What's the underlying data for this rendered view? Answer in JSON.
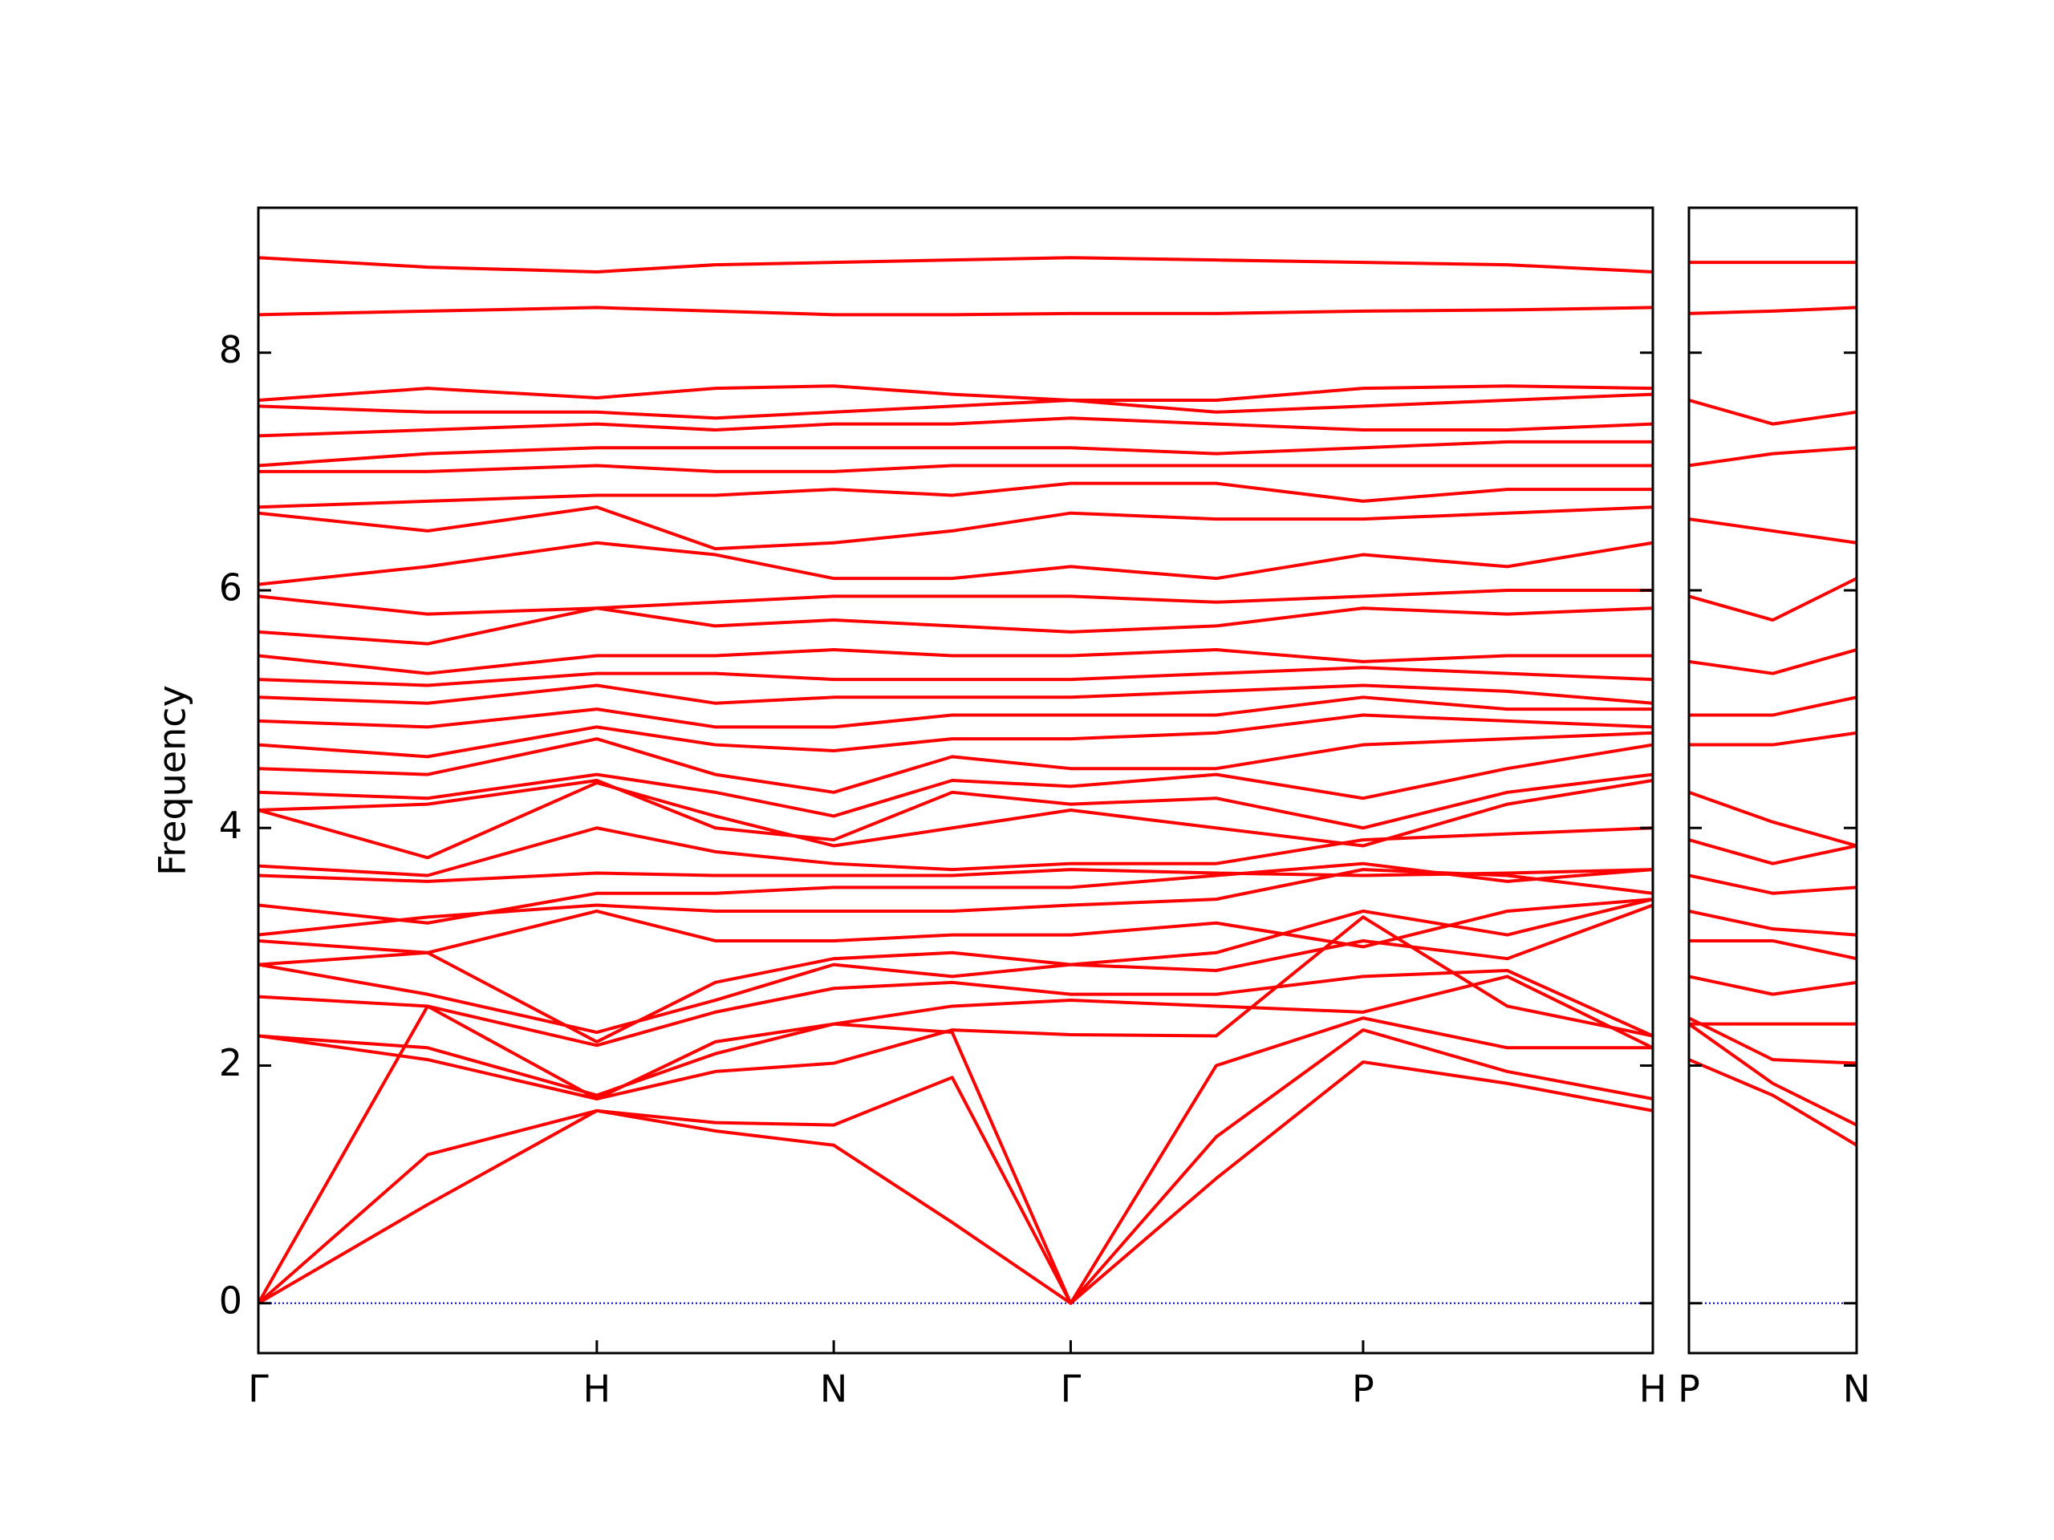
{
  "chart_data": [
    {
      "type": "line",
      "ylabel": "Frequency",
      "color": "#ff0000",
      "x": [
        0,
        0.5,
        1,
        1.35,
        1.7,
        2.05,
        2.4,
        2.83,
        3.264,
        3.69,
        4.12
      ],
      "xlim": [
        0,
        4.12
      ],
      "xticks": [
        {
          "value": 0,
          "label": "Γ"
        },
        {
          "value": 1,
          "label": "H"
        },
        {
          "value": 1.7,
          "label": "N"
        },
        {
          "value": 2.4,
          "label": "Γ"
        },
        {
          "value": 3.264,
          "label": "P"
        },
        {
          "value": 4.12,
          "label": "H"
        }
      ],
      "ylim": [
        -0.42,
        9.22
      ],
      "yticks": [
        0,
        2,
        4,
        6,
        8
      ],
      "zero_line": {
        "y": 0,
        "color": "#0000cc"
      },
      "series": [
        {
          "values": [
            0,
            0.83,
            1.62,
            1.45,
            1.33,
            0.68,
            0,
            1.05,
            2.03,
            1.85,
            1.62
          ]
        },
        {
          "values": [
            0,
            1.25,
            1.62,
            1.52,
            1.5,
            1.9,
            0,
            1.4,
            2.3,
            1.95,
            1.72
          ]
        },
        {
          "values": [
            0,
            2.5,
            1.72,
            2.2,
            2.35,
            2.28,
            0,
            2.0,
            2.4,
            2.15,
            2.15
          ]
        },
        {
          "values": [
            2.25,
            2.05,
            1.72,
            1.95,
            2.02,
            2.3,
            2.26,
            2.25,
            3.25,
            2.5,
            2.25
          ]
        },
        {
          "values": [
            2.25,
            2.15,
            1.75,
            2.1,
            2.35,
            2.5,
            2.55,
            2.5,
            2.45,
            2.75,
            2.15
          ]
        },
        {
          "values": [
            2.58,
            2.5,
            2.17,
            2.45,
            2.65,
            2.7,
            2.6,
            2.6,
            2.75,
            2.8,
            2.25
          ]
        },
        {
          "values": [
            2.85,
            2.6,
            2.28,
            2.55,
            2.85,
            2.75,
            2.85,
            2.8,
            3.05,
            2.9,
            3.35
          ]
        },
        {
          "values": [
            2.85,
            2.95,
            2.2,
            2.7,
            2.9,
            2.95,
            2.85,
            2.95,
            3.3,
            3.1,
            3.4
          ]
        },
        {
          "values": [
            3.05,
            2.95,
            3.3,
            3.05,
            3.05,
            3.1,
            3.1,
            3.2,
            3.0,
            3.3,
            3.4
          ]
        },
        {
          "values": [
            3.1,
            3.25,
            3.35,
            3.3,
            3.3,
            3.3,
            3.35,
            3.4,
            3.65,
            3.6,
            3.45
          ]
        },
        {
          "values": [
            3.35,
            3.2,
            3.45,
            3.45,
            3.5,
            3.5,
            3.5,
            3.6,
            3.7,
            3.55,
            3.65
          ]
        },
        {
          "values": [
            3.6,
            3.55,
            3.62,
            3.6,
            3.6,
            3.6,
            3.65,
            3.62,
            3.6,
            3.62,
            3.65
          ]
        },
        {
          "values": [
            3.68,
            3.6,
            4.0,
            3.8,
            3.7,
            3.65,
            3.7,
            3.7,
            3.9,
            3.95,
            4.0
          ]
        },
        {
          "values": [
            4.15,
            3.75,
            4.38,
            4.1,
            3.85,
            4.0,
            4.15,
            4.0,
            3.85,
            4.2,
            4.4
          ]
        },
        {
          "values": [
            4.15,
            4.2,
            4.4,
            4.0,
            3.9,
            4.3,
            4.2,
            4.25,
            4.0,
            4.3,
            4.45
          ]
        },
        {
          "values": [
            4.3,
            4.25,
            4.45,
            4.3,
            4.1,
            4.4,
            4.35,
            4.45,
            4.25,
            4.5,
            4.7
          ]
        },
        {
          "values": [
            4.5,
            4.45,
            4.75,
            4.45,
            4.3,
            4.6,
            4.5,
            4.5,
            4.7,
            4.75,
            4.8
          ]
        },
        {
          "values": [
            4.7,
            4.6,
            4.85,
            4.7,
            4.65,
            4.75,
            4.75,
            4.8,
            4.95,
            4.9,
            4.85
          ]
        },
        {
          "values": [
            4.9,
            4.85,
            5.0,
            4.85,
            4.85,
            4.95,
            4.95,
            4.95,
            5.1,
            5.0,
            5.0
          ]
        },
        {
          "values": [
            5.1,
            5.05,
            5.2,
            5.05,
            5.1,
            5.1,
            5.1,
            5.15,
            5.2,
            5.15,
            5.05
          ]
        },
        {
          "values": [
            5.25,
            5.2,
            5.3,
            5.3,
            5.25,
            5.25,
            5.25,
            5.3,
            5.35,
            5.3,
            5.25
          ]
        },
        {
          "values": [
            5.45,
            5.3,
            5.45,
            5.45,
            5.5,
            5.45,
            5.45,
            5.5,
            5.4,
            5.45,
            5.45
          ]
        },
        {
          "values": [
            5.65,
            5.55,
            5.85,
            5.7,
            5.75,
            5.7,
            5.65,
            5.7,
            5.85,
            5.8,
            5.85
          ]
        },
        {
          "values": [
            5.95,
            5.8,
            5.85,
            5.9,
            5.95,
            5.95,
            5.95,
            5.9,
            5.95,
            6.0,
            6.0
          ]
        },
        {
          "values": [
            6.05,
            6.2,
            6.4,
            6.3,
            6.1,
            6.1,
            6.2,
            6.1,
            6.3,
            6.2,
            6.4
          ]
        },
        {
          "values": [
            6.65,
            6.5,
            6.7,
            6.35,
            6.4,
            6.5,
            6.65,
            6.6,
            6.6,
            6.65,
            6.7
          ]
        },
        {
          "values": [
            6.7,
            6.75,
            6.8,
            6.8,
            6.85,
            6.8,
            6.9,
            6.9,
            6.75,
            6.85,
            6.85
          ]
        },
        {
          "values": [
            7.0,
            7.0,
            7.05,
            7.0,
            7.0,
            7.05,
            7.05,
            7.05,
            7.05,
            7.05,
            7.05
          ]
        },
        {
          "values": [
            7.05,
            7.15,
            7.2,
            7.2,
            7.2,
            7.2,
            7.2,
            7.15,
            7.2,
            7.25,
            7.25
          ]
        },
        {
          "values": [
            7.3,
            7.35,
            7.4,
            7.35,
            7.4,
            7.4,
            7.45,
            7.4,
            7.35,
            7.35,
            7.4
          ]
        },
        {
          "values": [
            7.55,
            7.5,
            7.5,
            7.45,
            7.5,
            7.55,
            7.6,
            7.5,
            7.55,
            7.6,
            7.65
          ]
        },
        {
          "values": [
            7.6,
            7.7,
            7.62,
            7.7,
            7.72,
            7.65,
            7.6,
            7.6,
            7.7,
            7.72,
            7.7
          ]
        },
        {
          "values": [
            8.32,
            8.35,
            8.38,
            8.35,
            8.32,
            8.32,
            8.33,
            8.33,
            8.35,
            8.36,
            8.38
          ]
        },
        {
          "values": [
            8.8,
            8.72,
            8.68,
            8.74,
            8.76,
            8.78,
            8.8,
            8.78,
            8.76,
            8.74,
            8.68
          ]
        }
      ]
    },
    {
      "type": "line",
      "color": "#ff0000",
      "x": [
        0,
        0.247,
        0.494
      ],
      "xlim": [
        0,
        0.494
      ],
      "xticks": [
        {
          "value": 0,
          "label": "P"
        },
        {
          "value": 0.494,
          "label": "N"
        }
      ],
      "ylim": [
        -0.42,
        9.22
      ],
      "yticks": [
        0,
        2,
        4,
        6,
        8
      ],
      "zero_line": {
        "y": 0,
        "color": "#0000cc"
      },
      "series": [
        {
          "values": [
            2.05,
            1.75,
            1.33
          ]
        },
        {
          "values": [
            2.35,
            1.85,
            1.5
          ]
        },
        {
          "values": [
            2.4,
            2.05,
            2.02
          ]
        },
        {
          "values": [
            2.35,
            2.35,
            2.35
          ]
        },
        {
          "values": [
            2.75,
            2.6,
            2.7
          ]
        },
        {
          "values": [
            3.05,
            3.05,
            2.9
          ]
        },
        {
          "values": [
            3.3,
            3.15,
            3.1
          ]
        },
        {
          "values": [
            3.6,
            3.45,
            3.5
          ]
        },
        {
          "values": [
            3.9,
            3.7,
            3.85
          ]
        },
        {
          "values": [
            4.3,
            4.05,
            3.85
          ]
        },
        {
          "values": [
            4.7,
            4.7,
            4.8
          ]
        },
        {
          "values": [
            4.95,
            4.95,
            5.1
          ]
        },
        {
          "values": [
            5.4,
            5.3,
            5.5
          ]
        },
        {
          "values": [
            5.95,
            5.75,
            6.1
          ]
        },
        {
          "values": [
            6.6,
            6.5,
            6.4
          ]
        },
        {
          "values": [
            7.05,
            7.15,
            7.2
          ]
        },
        {
          "values": [
            7.6,
            7.4,
            7.5
          ]
        },
        {
          "values": [
            8.33,
            8.35,
            8.38
          ]
        },
        {
          "values": [
            8.76,
            8.76,
            8.76
          ]
        }
      ]
    }
  ]
}
